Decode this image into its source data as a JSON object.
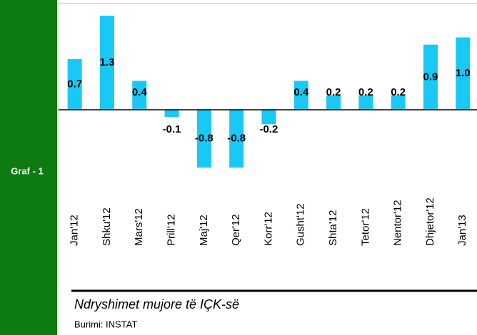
{
  "chart_data": {
    "type": "bar",
    "side_label": "Graf - 1",
    "title": "Ndryshimet mujore të IÇK-së",
    "source": "Burimi: INSTAT",
    "categories": [
      "Jan'12",
      "Shku'12",
      "Mars'12",
      "Prill'12",
      "Maj'12",
      "Qer'12",
      "Korr'12",
      "Gusht'12",
      "Shta'12",
      "Tetor'12",
      "Nentor'12",
      "Dhjetor'12",
      "Jan'13"
    ],
    "values": [
      0.7,
      1.3,
      0.4,
      -0.1,
      -0.8,
      -0.8,
      -0.2,
      0.4,
      0.2,
      0.2,
      0.2,
      0.9,
      1.0
    ],
    "value_labels": [
      "0.7",
      "1.3",
      "0.4",
      "-0.1",
      "-0.8",
      "-0.8",
      "-0.2",
      "0.4",
      "0.2",
      "0.2",
      "0.2",
      "0.9",
      "1.0"
    ],
    "color": "#1ac8f5"
  }
}
